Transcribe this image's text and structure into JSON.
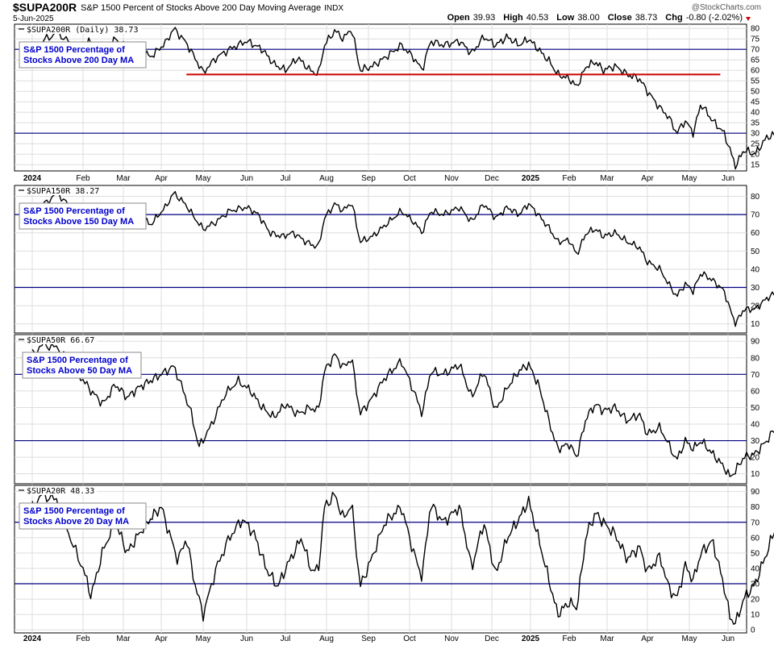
{
  "header": {
    "symbol": "$SUPA200R",
    "description": "S&P 1500 Percent of Stocks Above 200 Day Moving Average",
    "exchange": "INDX",
    "date": "5-Jun-2025",
    "credit": "@StockCharts.com",
    "ohlc": [
      {
        "key": "Open",
        "value": "39.93"
      },
      {
        "key": "High",
        "value": "40.53"
      },
      {
        "key": "Low",
        "value": "38.00"
      },
      {
        "key": "Close",
        "value": "38.73"
      },
      {
        "key": "Chg",
        "value": "-0.80 (-2.02%)"
      }
    ],
    "chg_arrow_color": "#cc0000"
  },
  "colors": {
    "price_line": "#000000",
    "threshold_line": "#000080",
    "support_line": "#cc0000",
    "note_text": "#0000cc",
    "grid": "#dddddd"
  },
  "chart_data": [
    {
      "type": "line",
      "symbol": "$SUPA200R",
      "label": "$SUPA200R (Daily) 38.73",
      "note": [
        "S&P 1500 Percentage of",
        "Stocks Above 200 Day MA"
      ],
      "ylim": [
        12,
        82
      ],
      "yticks": [
        15,
        20,
        25,
        30,
        35,
        40,
        45,
        50,
        55,
        60,
        65,
        70,
        75,
        80
      ],
      "hlines": [
        30,
        70
      ],
      "support": {
        "value": 58,
        "from_month": 3.6,
        "to_month": 16.8
      },
      "last": 38.73,
      "anchors": [
        [
          0,
          62
        ],
        [
          0.2,
          74
        ],
        [
          0.5,
          78
        ],
        [
          0.9,
          70
        ],
        [
          1.2,
          74
        ],
        [
          1.5,
          68
        ],
        [
          1.8,
          75
        ],
        [
          2.1,
          70
        ],
        [
          2.4,
          73
        ],
        [
          2.7,
          66
        ],
        [
          3.1,
          73
        ],
        [
          3.3,
          80
        ],
        [
          3.6,
          73
        ],
        [
          3.8,
          66
        ],
        [
          4.0,
          59
        ],
        [
          4.3,
          66
        ],
        [
          4.6,
          70
        ],
        [
          5.0,
          74
        ],
        [
          5.4,
          70
        ],
        [
          5.7,
          63
        ],
        [
          6.0,
          60
        ],
        [
          6.3,
          66
        ],
        [
          6.6,
          60
        ],
        [
          6.8,
          58
        ],
        [
          6.95,
          72
        ],
        [
          7.2,
          79
        ],
        [
          7.4,
          75
        ],
        [
          7.6,
          80
        ],
        [
          7.8,
          60
        ],
        [
          8.1,
          62
        ],
        [
          8.4,
          66
        ],
        [
          8.8,
          72
        ],
        [
          9.1,
          66
        ],
        [
          9.3,
          60
        ],
        [
          9.5,
          74
        ],
        [
          9.8,
          72
        ],
        [
          10.2,
          74
        ],
        [
          10.5,
          68
        ],
        [
          10.8,
          76
        ],
        [
          11.1,
          72
        ],
        [
          11.4,
          76
        ],
        [
          11.7,
          72
        ],
        [
          11.95,
          75
        ],
        [
          12.2,
          70
        ],
        [
          12.5,
          64
        ],
        [
          12.7,
          58
        ],
        [
          13.0,
          56
        ],
        [
          13.2,
          52
        ],
        [
          13.45,
          62
        ],
        [
          13.7,
          64
        ],
        [
          13.9,
          60
        ],
        [
          14.2,
          62
        ],
        [
          14.5,
          58
        ],
        [
          14.8,
          56
        ],
        [
          15.0,
          50
        ],
        [
          15.3,
          42
        ],
        [
          15.5,
          38
        ],
        [
          15.7,
          30
        ],
        [
          15.9,
          36
        ],
        [
          16.1,
          30
        ],
        [
          16.3,
          44
        ],
        [
          16.6,
          36
        ],
        [
          16.9,
          30
        ],
        [
          17.05,
          22
        ],
        [
          17.2,
          14
        ],
        [
          17.4,
          22
        ],
        [
          17.7,
          20
        ],
        [
          18.0,
          28
        ],
        [
          18.3,
          30
        ],
        [
          18.6,
          36
        ],
        [
          18.9,
          44
        ],
        [
          19.1,
          48
        ],
        [
          19.3,
          42
        ],
        [
          19.5,
          38
        ],
        [
          19.7,
          40
        ],
        [
          19.95,
          38.73
        ]
      ]
    },
    {
      "type": "line",
      "symbol": "$SUPA150R",
      "label": "$SUPA150R 38.27",
      "note": [
        "S&P 1500 Percentage of",
        "Stocks Above 150 Day MA"
      ],
      "ylim": [
        5,
        86
      ],
      "yticks": [
        10,
        20,
        30,
        40,
        50,
        60,
        70,
        80
      ],
      "hlines": [
        30,
        70
      ],
      "last": 38.27,
      "anchors": [
        [
          0,
          63
        ],
        [
          0.2,
          75
        ],
        [
          0.5,
          82
        ],
        [
          0.8,
          72
        ],
        [
          1.2,
          72
        ],
        [
          1.5,
          68
        ],
        [
          1.8,
          75
        ],
        [
          2.1,
          68
        ],
        [
          2.4,
          72
        ],
        [
          2.7,
          64
        ],
        [
          3.1,
          74
        ],
        [
          3.3,
          82
        ],
        [
          3.6,
          75
        ],
        [
          3.8,
          68
        ],
        [
          4.0,
          62
        ],
        [
          4.3,
          66
        ],
        [
          4.6,
          72
        ],
        [
          5.0,
          74
        ],
        [
          5.3,
          70
        ],
        [
          5.6,
          60
        ],
        [
          5.9,
          58
        ],
        [
          6.2,
          60
        ],
        [
          6.5,
          55
        ],
        [
          6.8,
          52
        ],
        [
          6.95,
          68
        ],
        [
          7.2,
          76
        ],
        [
          7.4,
          72
        ],
        [
          7.6,
          77
        ],
        [
          7.8,
          55
        ],
        [
          8.1,
          58
        ],
        [
          8.4,
          64
        ],
        [
          8.8,
          72
        ],
        [
          9.1,
          66
        ],
        [
          9.3,
          60
        ],
        [
          9.5,
          72
        ],
        [
          9.8,
          70
        ],
        [
          10.2,
          74
        ],
        [
          10.5,
          66
        ],
        [
          10.8,
          76
        ],
        [
          11.1,
          68
        ],
        [
          11.4,
          74
        ],
        [
          11.7,
          70
        ],
        [
          11.95,
          76
        ],
        [
          12.2,
          70
        ],
        [
          12.5,
          62
        ],
        [
          12.7,
          55
        ],
        [
          13.0,
          56
        ],
        [
          13.2,
          48
        ],
        [
          13.45,
          60
        ],
        [
          13.7,
          62
        ],
        [
          13.9,
          58
        ],
        [
          14.2,
          60
        ],
        [
          14.5,
          55
        ],
        [
          14.8,
          52
        ],
        [
          15.0,
          44
        ],
        [
          15.3,
          40
        ],
        [
          15.5,
          32
        ],
        [
          15.7,
          25
        ],
        [
          15.9,
          32
        ],
        [
          16.1,
          28
        ],
        [
          16.3,
          38
        ],
        [
          16.6,
          34
        ],
        [
          16.9,
          28
        ],
        [
          17.05,
          18
        ],
        [
          17.2,
          10
        ],
        [
          17.4,
          18
        ],
        [
          17.7,
          18
        ],
        [
          18.0,
          24
        ],
        [
          18.3,
          28
        ],
        [
          18.6,
          32
        ],
        [
          18.9,
          38
        ],
        [
          19.1,
          46
        ],
        [
          19.3,
          40
        ],
        [
          19.5,
          36
        ],
        [
          19.7,
          39
        ],
        [
          19.95,
          38.27
        ]
      ]
    },
    {
      "type": "line",
      "symbol": "$SUPA50R",
      "label": "$SUPA50R 66.67",
      "note": [
        "S&P 1500 Percentage of",
        "Stocks Above 50 Day MA"
      ],
      "ylim": [
        4,
        94
      ],
      "yticks": [
        10,
        20,
        30,
        40,
        50,
        60,
        70,
        80,
        90
      ],
      "hlines": [
        30,
        70
      ],
      "last": 66.67,
      "anchors": [
        [
          0,
          82
        ],
        [
          0.2,
          88
        ],
        [
          0.5,
          86
        ],
        [
          0.9,
          70
        ],
        [
          1.2,
          60
        ],
        [
          1.5,
          52
        ],
        [
          1.8,
          64
        ],
        [
          2.1,
          56
        ],
        [
          2.4,
          62
        ],
        [
          2.7,
          66
        ],
        [
          3.0,
          70
        ],
        [
          3.3,
          75
        ],
        [
          3.5,
          62
        ],
        [
          3.7,
          48
        ],
        [
          3.9,
          26
        ],
        [
          4.2,
          40
        ],
        [
          4.5,
          58
        ],
        [
          4.8,
          66
        ],
        [
          5.1,
          60
        ],
        [
          5.4,
          50
        ],
        [
          5.7,
          44
        ],
        [
          6.0,
          52
        ],
        [
          6.3,
          46
        ],
        [
          6.6,
          50
        ],
        [
          6.8,
          48
        ],
        [
          6.95,
          72
        ],
        [
          7.2,
          82
        ],
        [
          7.4,
          74
        ],
        [
          7.6,
          80
        ],
        [
          7.8,
          46
        ],
        [
          8.1,
          56
        ],
        [
          8.4,
          68
        ],
        [
          8.8,
          78
        ],
        [
          9.1,
          60
        ],
        [
          9.3,
          46
        ],
        [
          9.5,
          72
        ],
        [
          9.8,
          70
        ],
        [
          10.2,
          76
        ],
        [
          10.5,
          56
        ],
        [
          10.8,
          72
        ],
        [
          11.1,
          48
        ],
        [
          11.4,
          62
        ],
        [
          11.7,
          72
        ],
        [
          11.95,
          76
        ],
        [
          12.2,
          64
        ],
        [
          12.5,
          40
        ],
        [
          12.7,
          25
        ],
        [
          13.0,
          28
        ],
        [
          13.2,
          20
        ],
        [
          13.45,
          44
        ],
        [
          13.7,
          52
        ],
        [
          13.9,
          48
        ],
        [
          14.2,
          50
        ],
        [
          14.5,
          42
        ],
        [
          14.8,
          46
        ],
        [
          15.0,
          34
        ],
        [
          15.3,
          38
        ],
        [
          15.5,
          28
        ],
        [
          15.7,
          18
        ],
        [
          15.9,
          30
        ],
        [
          16.1,
          25
        ],
        [
          16.3,
          30
        ],
        [
          16.6,
          22
        ],
        [
          16.9,
          14
        ],
        [
          17.05,
          8
        ],
        [
          17.2,
          12
        ],
        [
          17.4,
          20
        ],
        [
          17.7,
          22
        ],
        [
          18.0,
          30
        ],
        [
          18.3,
          40
        ],
        [
          18.6,
          52
        ],
        [
          18.9,
          68
        ],
        [
          19.1,
          78
        ],
        [
          19.3,
          70
        ],
        [
          19.5,
          58
        ],
        [
          19.7,
          68
        ],
        [
          19.95,
          66.67
        ]
      ]
    },
    {
      "type": "line",
      "symbol": "$SUPA20R",
      "label": "$SUPA20R 48.33",
      "note": [
        "S&P 1500 Percentage of",
        "Stocks Above 20 Day MA"
      ],
      "ylim": [
        -2,
        94
      ],
      "yticks": [
        0,
        10,
        20,
        30,
        40,
        50,
        60,
        70,
        80,
        90
      ],
      "hlines": [
        30,
        70
      ],
      "last": 48.33,
      "anchors": [
        [
          0,
          80
        ],
        [
          0.2,
          88
        ],
        [
          0.5,
          84
        ],
        [
          0.8,
          55
        ],
        [
          1.0,
          40
        ],
        [
          1.2,
          22
        ],
        [
          1.5,
          52
        ],
        [
          1.8,
          70
        ],
        [
          2.1,
          50
        ],
        [
          2.4,
          62
        ],
        [
          2.7,
          72
        ],
        [
          3.0,
          80
        ],
        [
          3.2,
          62
        ],
        [
          3.4,
          45
        ],
        [
          3.6,
          60
        ],
        [
          3.8,
          30
        ],
        [
          4.0,
          10
        ],
        [
          4.3,
          40
        ],
        [
          4.6,
          60
        ],
        [
          4.9,
          72
        ],
        [
          5.2,
          62
        ],
        [
          5.5,
          40
        ],
        [
          5.8,
          28
        ],
        [
          6.1,
          45
        ],
        [
          6.4,
          60
        ],
        [
          6.6,
          40
        ],
        [
          6.8,
          38
        ],
        [
          6.95,
          80
        ],
        [
          7.2,
          88
        ],
        [
          7.4,
          72
        ],
        [
          7.6,
          82
        ],
        [
          7.8,
          28
        ],
        [
          8.1,
          48
        ],
        [
          8.4,
          70
        ],
        [
          8.8,
          80
        ],
        [
          9.1,
          50
        ],
        [
          9.3,
          34
        ],
        [
          9.5,
          82
        ],
        [
          9.8,
          70
        ],
        [
          10.2,
          80
        ],
        [
          10.5,
          40
        ],
        [
          10.8,
          70
        ],
        [
          11.1,
          36
        ],
        [
          11.4,
          60
        ],
        [
          11.7,
          72
        ],
        [
          11.95,
          84
        ],
        [
          12.2,
          60
        ],
        [
          12.5,
          30
        ],
        [
          12.7,
          10
        ],
        [
          13.0,
          18
        ],
        [
          13.2,
          14
        ],
        [
          13.45,
          62
        ],
        [
          13.7,
          76
        ],
        [
          13.9,
          70
        ],
        [
          14.2,
          62
        ],
        [
          14.5,
          46
        ],
        [
          14.8,
          54
        ],
        [
          15.0,
          38
        ],
        [
          15.3,
          48
        ],
        [
          15.5,
          28
        ],
        [
          15.7,
          20
        ],
        [
          15.9,
          42
        ],
        [
          16.1,
          32
        ],
        [
          16.3,
          50
        ],
        [
          16.6,
          58
        ],
        [
          16.9,
          28
        ],
        [
          17.05,
          8
        ],
        [
          17.2,
          4
        ],
        [
          17.4,
          20
        ],
        [
          17.7,
          30
        ],
        [
          18.0,
          50
        ],
        [
          18.3,
          72
        ],
        [
          18.6,
          84
        ],
        [
          18.9,
          80
        ],
        [
          19.1,
          82
        ],
        [
          19.3,
          50
        ],
        [
          19.5,
          60
        ],
        [
          19.7,
          55
        ],
        [
          19.95,
          48.33
        ]
      ]
    }
  ],
  "x_axis": {
    "ticks": [
      {
        "label": "2024",
        "bold": true
      },
      {
        "label": "Feb",
        "bold": false
      },
      {
        "label": "Mar",
        "bold": false
      },
      {
        "label": "Apr",
        "bold": false
      },
      {
        "label": "May",
        "bold": false
      },
      {
        "label": "Jun",
        "bold": false
      },
      {
        "label": "Jul",
        "bold": false
      },
      {
        "label": "Aug",
        "bold": false
      },
      {
        "label": "Sep",
        "bold": false
      },
      {
        "label": "Oct",
        "bold": false
      },
      {
        "label": "Nov",
        "bold": false
      },
      {
        "label": "Dec",
        "bold": false
      },
      {
        "label": "2025",
        "bold": true
      },
      {
        "label": "Feb",
        "bold": false
      },
      {
        "label": "Mar",
        "bold": false
      },
      {
        "label": "Apr",
        "bold": false
      },
      {
        "label": "May",
        "bold": false
      },
      {
        "label": "Jun",
        "bold": false
      }
    ]
  }
}
